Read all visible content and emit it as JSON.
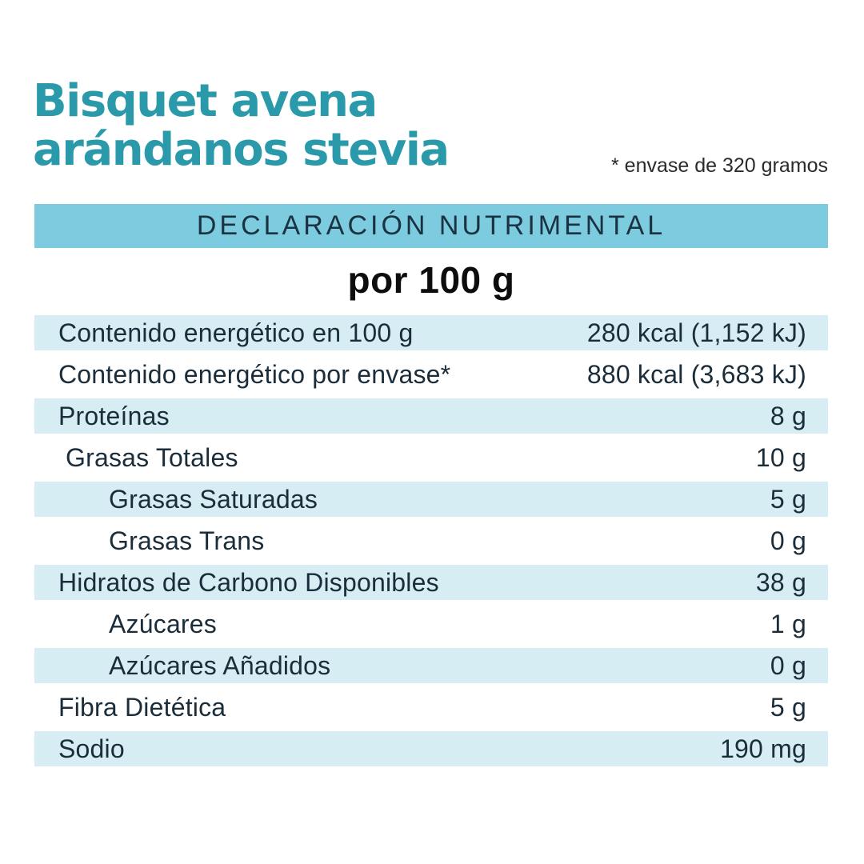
{
  "title": {
    "line1": "Bisquet avena",
    "line2": "arándanos stevia"
  },
  "note": "* envase de 320 gramos",
  "colors": {
    "title_teal": "#2A9AAB",
    "header_bar_bg": "#7CCBDE",
    "row_shade_bg": "#D5EDF3",
    "text_dark": "#1B2D3A"
  },
  "table": {
    "header": "DECLARACIÓN NUTRIMENTAL",
    "subheader": "por 100 g",
    "rows": [
      {
        "label": "Contenido energético en 100 g",
        "value": "280 kcal (1,152 kJ)"
      },
      {
        "label": "Contenido energético por envase*",
        "value": "880 kcal (3,683 kJ)"
      },
      {
        "label": "Proteínas",
        "value": "8 g"
      },
      {
        "label": "Grasas Totales",
        "value": "10 g"
      },
      {
        "label": "Grasas Saturadas",
        "value": "5 g"
      },
      {
        "label": "Grasas Trans",
        "value": "0 g"
      },
      {
        "label": "Hidratos de Carbono Disponibles",
        "value": "38 g"
      },
      {
        "label": "Azúcares",
        "value": "1 g"
      },
      {
        "label": "Azúcares Añadidos",
        "value": "0 g"
      },
      {
        "label": "Fibra Dietética",
        "value": "5 g"
      },
      {
        "label": "Sodio",
        "value": "190 mg"
      }
    ]
  }
}
